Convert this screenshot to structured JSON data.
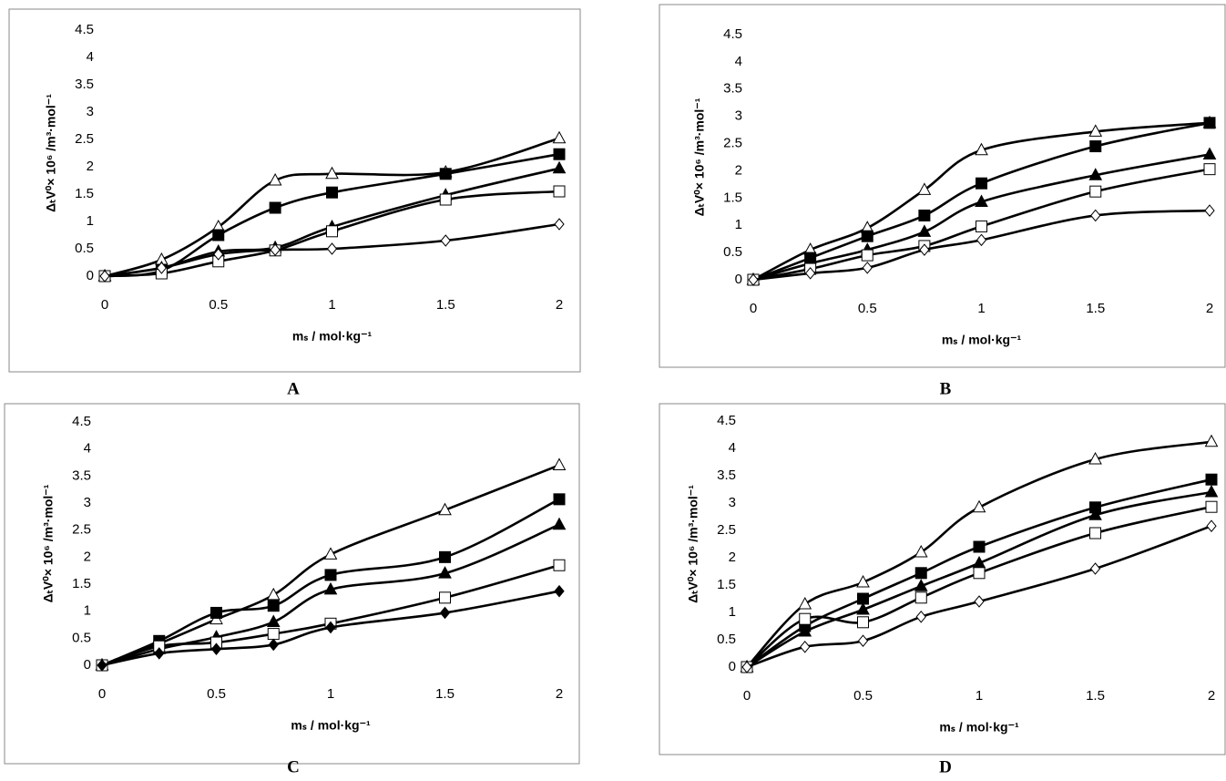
{
  "chart_data": [
    {
      "type": "line",
      "panel_label": "A",
      "x_label": "mₛ / mol·kg⁻¹",
      "y_label": "ΔₜV⁰× 10⁶ /m³·mol⁻¹",
      "x": [
        0,
        0.25,
        0.5,
        0.75,
        1,
        1.5,
        2
      ],
      "xlim": [
        0,
        2
      ],
      "xticks": [
        0,
        0.5,
        1,
        1.5,
        2
      ],
      "ylim": [
        0,
        4.5
      ],
      "yticks": [
        0,
        0.5,
        1,
        1.5,
        2,
        2.5,
        3,
        3.5,
        4,
        4.5
      ],
      "series": [
        {
          "marker": "open-triangle",
          "color": "#000000",
          "values": [
            0,
            0.3,
            0.9,
            1.75,
            1.87,
            1.9,
            2.52
          ]
        },
        {
          "marker": "filled-square",
          "color": "#000000",
          "values": [
            0,
            0.1,
            0.75,
            1.25,
            1.53,
            1.87,
            2.23
          ]
        },
        {
          "marker": "filled-triangle",
          "color": "#000000",
          "values": [
            0,
            0.15,
            0.45,
            0.52,
            0.9,
            1.48,
            1.97
          ]
        },
        {
          "marker": "open-square",
          "color": "#000000",
          "values": [
            0,
            0.05,
            0.27,
            0.47,
            0.82,
            1.4,
            1.55
          ]
        },
        {
          "marker": "open-diamond",
          "color": "#000000",
          "values": [
            0,
            0.15,
            0.4,
            0.48,
            0.5,
            0.65,
            0.95
          ]
        }
      ]
    },
    {
      "type": "line",
      "panel_label": "B",
      "x_label": "mₛ / mol·kg⁻¹",
      "y_label": "ΔₜV⁰× 10⁶ /m³·mol⁻¹",
      "x": [
        0,
        0.25,
        0.5,
        0.75,
        1,
        1.5,
        2
      ],
      "xlim": [
        0,
        2
      ],
      "xticks": [
        0,
        0.5,
        1,
        1.5,
        2
      ],
      "ylim": [
        0,
        4.5
      ],
      "yticks": [
        0,
        0.5,
        1,
        1.5,
        2,
        2.5,
        3,
        3.5,
        4,
        4.5
      ],
      "series": [
        {
          "marker": "open-triangle",
          "color": "#000000",
          "values": [
            0,
            0.55,
            0.95,
            1.65,
            2.38,
            2.72,
            2.88
          ]
        },
        {
          "marker": "filled-square",
          "color": "#000000",
          "values": [
            0,
            0.4,
            0.8,
            1.18,
            1.77,
            2.45,
            2.88
          ]
        },
        {
          "marker": "filled-triangle",
          "color": "#000000",
          "values": [
            0,
            0.3,
            0.55,
            0.88,
            1.43,
            1.92,
            2.3
          ]
        },
        {
          "marker": "open-square",
          "color": "#000000",
          "values": [
            0,
            0.2,
            0.45,
            0.62,
            0.98,
            1.62,
            2.03
          ]
        },
        {
          "marker": "open-diamond",
          "color": "#000000",
          "values": [
            0,
            0.12,
            0.22,
            0.55,
            0.73,
            1.18,
            1.27
          ]
        }
      ]
    },
    {
      "type": "line",
      "panel_label": "C",
      "x_label": "mₛ / mol·kg⁻¹",
      "y_label": "ΔₜV⁰× 10⁶ /m³·mol⁻¹",
      "x": [
        0,
        0.25,
        0.5,
        0.75,
        1,
        1.5,
        2
      ],
      "xlim": [
        0,
        2
      ],
      "xticks": [
        0,
        0.5,
        1,
        1.5,
        2
      ],
      "ylim": [
        0,
        4.5
      ],
      "yticks": [
        0,
        0.5,
        1,
        1.5,
        2,
        2.5,
        3,
        3.5,
        4,
        4.5
      ],
      "series": [
        {
          "marker": "open-triangle",
          "color": "#000000",
          "values": [
            0,
            0.4,
            0.85,
            1.3,
            2.05,
            2.87,
            3.7
          ]
        },
        {
          "marker": "filled-square",
          "color": "#000000",
          "values": [
            0,
            0.45,
            0.97,
            1.1,
            1.67,
            2.0,
            3.07
          ]
        },
        {
          "marker": "filled-triangle",
          "color": "#000000",
          "values": [
            0,
            0.3,
            0.52,
            0.8,
            1.4,
            1.7,
            2.6
          ]
        },
        {
          "marker": "open-square",
          "color": "#000000",
          "values": [
            0,
            0.35,
            0.42,
            0.58,
            0.77,
            1.25,
            1.85
          ]
        },
        {
          "marker": "filled-diamond",
          "color": "#000000",
          "values": [
            0,
            0.22,
            0.3,
            0.38,
            0.7,
            0.97,
            1.37
          ]
        }
      ]
    },
    {
      "type": "line",
      "panel_label": "D",
      "x_label": "mₛ / mol·kg⁻¹",
      "y_label": "ΔₜV⁰× 10⁶ /m³·mol⁻¹",
      "x": [
        0,
        0.25,
        0.5,
        0.75,
        1,
        1.5,
        2
      ],
      "xlim": [
        0,
        2
      ],
      "xticks": [
        0,
        0.5,
        1,
        1.5,
        2
      ],
      "ylim": [
        0,
        4.5
      ],
      "yticks": [
        0,
        0.5,
        1,
        1.5,
        2,
        2.5,
        3,
        3.5,
        4,
        4.5
      ],
      "series": [
        {
          "marker": "open-triangle",
          "color": "#000000",
          "values": [
            0,
            1.15,
            1.55,
            2.1,
            2.92,
            3.8,
            4.12
          ]
        },
        {
          "marker": "filled-square",
          "color": "#000000",
          "values": [
            0,
            0.75,
            1.25,
            1.72,
            2.2,
            2.92,
            3.43
          ]
        },
        {
          "marker": "filled-triangle",
          "color": "#000000",
          "values": [
            0,
            0.65,
            1.05,
            1.48,
            1.9,
            2.78,
            3.2
          ]
        },
        {
          "marker": "open-square",
          "color": "#000000",
          "values": [
            0,
            0.88,
            0.82,
            1.27,
            1.72,
            2.45,
            2.93
          ]
        },
        {
          "marker": "open-diamond",
          "color": "#000000",
          "values": [
            0,
            0.37,
            0.48,
            0.92,
            1.2,
            1.8,
            2.58
          ]
        }
      ]
    }
  ]
}
